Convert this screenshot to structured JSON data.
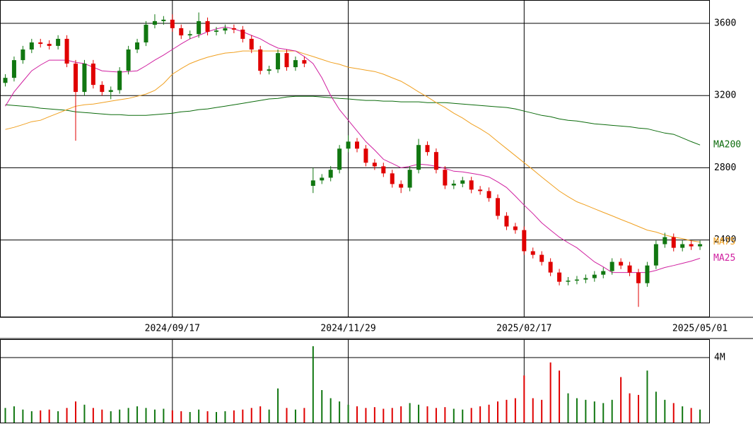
{
  "chart_data": {
    "type": "candlestick",
    "categories": [
      null,
      null,
      null,
      null,
      null,
      null,
      null,
      null,
      null,
      null,
      null,
      null,
      null,
      null,
      null,
      null,
      null,
      null,
      null,
      "2024/09/17",
      null,
      null,
      null,
      null,
      null,
      null,
      null,
      null,
      null,
      null,
      null,
      null,
      null,
      null,
      null,
      null,
      null,
      null,
      null,
      "2024/11/29",
      null,
      null,
      null,
      null,
      null,
      null,
      null,
      null,
      null,
      null,
      null,
      null,
      null,
      null,
      null,
      null,
      null,
      null,
      null,
      "2025/02/17",
      null,
      null,
      null,
      null,
      null,
      null,
      null,
      null,
      null,
      null,
      null,
      null,
      null,
      null,
      null,
      null,
      null,
      null,
      null,
      "2025/05/01"
    ],
    "open": [
      3270,
      3298,
      3396,
      3455,
      3494,
      3486,
      3475,
      3514,
      3377,
      3220,
      3377,
      3259,
      3220,
      3230,
      3337,
      3455,
      3494,
      3592,
      3612,
      3620,
      3573,
      3533,
      3540,
      3612,
      3553,
      3560,
      3573,
      3565,
      3514,
      3455,
      3337,
      3345,
      3435,
      3357,
      3396,
      2700,
      2730,
      2745,
      2789,
      2906,
      2945,
      2906,
      2828,
      2808,
      2769,
      2710,
      2690,
      2789,
      2926,
      2887,
      2789,
      2702,
      2712,
      2730,
      2679,
      2671,
      2632,
      2534,
      2475,
      2455,
      2338,
      2318,
      2279,
      2220,
      2169,
      2175,
      2181,
      2189,
      2208,
      2228,
      2279,
      2259,
      2220,
      2161,
      2259,
      2377,
      2416,
      2357,
      2377,
      2365
    ],
    "high": [
      3318,
      3416,
      3475,
      3514,
      3514,
      3506,
      3534,
      3534,
      3397,
      3397,
      3397,
      3279,
      3250,
      3357,
      3475,
      3514,
      3612,
      3650,
      3640,
      3650,
      3593,
      3560,
      3660,
      3632,
      3580,
      3593,
      3593,
      3585,
      3534,
      3475,
      3365,
      3455,
      3455,
      3416,
      3416,
      2800,
      2765,
      2809,
      2926,
      2980,
      2965,
      2926,
      2848,
      2828,
      2789,
      2730,
      2809,
      2960,
      2946,
      2907,
      2809,
      2732,
      2750,
      2750,
      2699,
      2691,
      2652,
      2554,
      2495,
      2475,
      2358,
      2338,
      2299,
      2240,
      2195,
      2201,
      2209,
      2228,
      2248,
      2299,
      2299,
      2279,
      2240,
      2279,
      2397,
      2440,
      2436,
      2397,
      2397,
      2397
    ],
    "low": [
      3250,
      3278,
      3376,
      3435,
      3466,
      3455,
      3455,
      3357,
      2950,
      3200,
      3239,
      3200,
      3180,
      3210,
      3317,
      3435,
      3474,
      3572,
      3592,
      3553,
      3513,
      3513,
      3520,
      3533,
      3533,
      3540,
      3545,
      3494,
      3435,
      3317,
      3317,
      3325,
      3337,
      3337,
      3357,
      2660,
      2710,
      2725,
      2769,
      2886,
      2886,
      2808,
      2788,
      2749,
      2690,
      2660,
      2670,
      2769,
      2867,
      2769,
      2682,
      2682,
      2692,
      2659,
      2651,
      2612,
      2514,
      2455,
      2435,
      2318,
      2298,
      2259,
      2200,
      2149,
      2149,
      2155,
      2161,
      2169,
      2188,
      2208,
      2239,
      2200,
      2030,
      2141,
      2239,
      2357,
      2337,
      2337,
      2345,
      2345
    ],
    "close": [
      3298,
      3396,
      3455,
      3494,
      3486,
      3475,
      3514,
      3377,
      3220,
      3377,
      3259,
      3220,
      3230,
      3337,
      3455,
      3494,
      3592,
      3612,
      3620,
      3573,
      3533,
      3540,
      3612,
      3553,
      3560,
      3573,
      3565,
      3514,
      3455,
      3337,
      3345,
      3435,
      3357,
      3396,
      3377,
      2730,
      2745,
      2789,
      2906,
      2945,
      2906,
      2828,
      2808,
      2769,
      2710,
      2690,
      2789,
      2926,
      2887,
      2789,
      2702,
      2712,
      2730,
      2679,
      2671,
      2632,
      2534,
      2475,
      2455,
      2338,
      2318,
      2279,
      2220,
      2169,
      2175,
      2181,
      2189,
      2208,
      2228,
      2279,
      2259,
      2220,
      2161,
      2259,
      2377,
      2416,
      2357,
      2377,
      2365,
      2377
    ],
    "up_color": "#117711",
    "down_color": "#e00000",
    "series": [
      {
        "name": "MA200",
        "color": "#0b6b0b",
        "values": [
          3149,
          3145,
          3141,
          3137,
          3130,
          3126,
          3122,
          3118,
          3110,
          3106,
          3102,
          3098,
          3094,
          3094,
          3090,
          3090,
          3090,
          3094,
          3098,
          3102,
          3110,
          3114,
          3122,
          3126,
          3134,
          3141,
          3149,
          3157,
          3165,
          3173,
          3181,
          3184,
          3192,
          3196,
          3196,
          3196,
          3192,
          3188,
          3184,
          3181,
          3177,
          3173,
          3173,
          3169,
          3169,
          3165,
          3165,
          3165,
          3161,
          3161,
          3161,
          3157,
          3153,
          3149,
          3145,
          3141,
          3137,
          3134,
          3126,
          3114,
          3102,
          3090,
          3083,
          3071,
          3063,
          3059,
          3051,
          3043,
          3039,
          3035,
          3031,
          3027,
          3020,
          3016,
          3004,
          2992,
          2985,
          2965,
          2945,
          2926
        ]
      },
      {
        "name": "MA75",
        "color": "#f0a020",
        "values": [
          3012,
          3024,
          3039,
          3055,
          3063,
          3083,
          3102,
          3122,
          3141,
          3149,
          3153,
          3161,
          3169,
          3177,
          3184,
          3196,
          3208,
          3228,
          3267,
          3318,
          3349,
          3377,
          3396,
          3412,
          3424,
          3435,
          3439,
          3447,
          3447,
          3447,
          3447,
          3447,
          3447,
          3447,
          3431,
          3416,
          3400,
          3384,
          3373,
          3357,
          3349,
          3341,
          3333,
          3318,
          3298,
          3279,
          3251,
          3220,
          3192,
          3161,
          3134,
          3102,
          3075,
          3043,
          3016,
          2985,
          2945,
          2906,
          2867,
          2828,
          2789,
          2749,
          2710,
          2671,
          2640,
          2612,
          2593,
          2573,
          2553,
          2534,
          2514,
          2495,
          2475,
          2455,
          2444,
          2428,
          2416,
          2408,
          2396,
          2389
        ]
      },
      {
        "name": "MA25",
        "color": "#d020a0",
        "values": [
          3141,
          3220,
          3279,
          3337,
          3369,
          3396,
          3396,
          3396,
          3384,
          3377,
          3357,
          3337,
          3333,
          3330,
          3333,
          3337,
          3365,
          3396,
          3424,
          3455,
          3486,
          3514,
          3533,
          3553,
          3569,
          3580,
          3569,
          3553,
          3533,
          3514,
          3486,
          3463,
          3455,
          3447,
          3416,
          3377,
          3298,
          3200,
          3122,
          3063,
          3004,
          2945,
          2898,
          2847,
          2824,
          2800,
          2808,
          2820,
          2816,
          2808,
          2796,
          2781,
          2777,
          2769,
          2761,
          2749,
          2722,
          2691,
          2643,
          2593,
          2546,
          2495,
          2455,
          2416,
          2385,
          2357,
          2318,
          2279,
          2251,
          2220,
          2220,
          2220,
          2220,
          2220,
          2232,
          2248,
          2259,
          2271,
          2283,
          2299
        ]
      }
    ],
    "ylim": [
      1976,
      3729
    ],
    "yticks": [
      2400,
      2800,
      3200,
      3600
    ],
    "grid": true,
    "volume": {
      "values": [
        900000,
        1000000,
        800000,
        700000,
        750000,
        800000,
        700000,
        900000,
        1300000,
        1100000,
        900000,
        800000,
        700000,
        800000,
        900000,
        1000000,
        900000,
        800000,
        850000,
        750000,
        700000,
        650000,
        800000,
        700000,
        650000,
        700000,
        750000,
        800000,
        900000,
        1000000,
        800000,
        2100000,
        900000,
        800000,
        900000,
        4700000,
        2000000,
        1500000,
        1300000,
        1100000,
        1000000,
        900000,
        950000,
        850000,
        900000,
        1000000,
        1200000,
        1100000,
        1000000,
        900000,
        950000,
        850000,
        800000,
        900000,
        1000000,
        1100000,
        1300000,
        1400000,
        1500000,
        2900000,
        1500000,
        1400000,
        3700000,
        3200000,
        1800000,
        1500000,
        1400000,
        1300000,
        1200000,
        1400000,
        2800000,
        1800000,
        1700000,
        3200000,
        1900000,
        1400000,
        1200000,
        1000000,
        900000,
        800000
      ],
      "ylim": [
        0,
        5130000
      ],
      "yticks": [
        {
          "value": 4000000,
          "label": "4M"
        }
      ]
    }
  }
}
